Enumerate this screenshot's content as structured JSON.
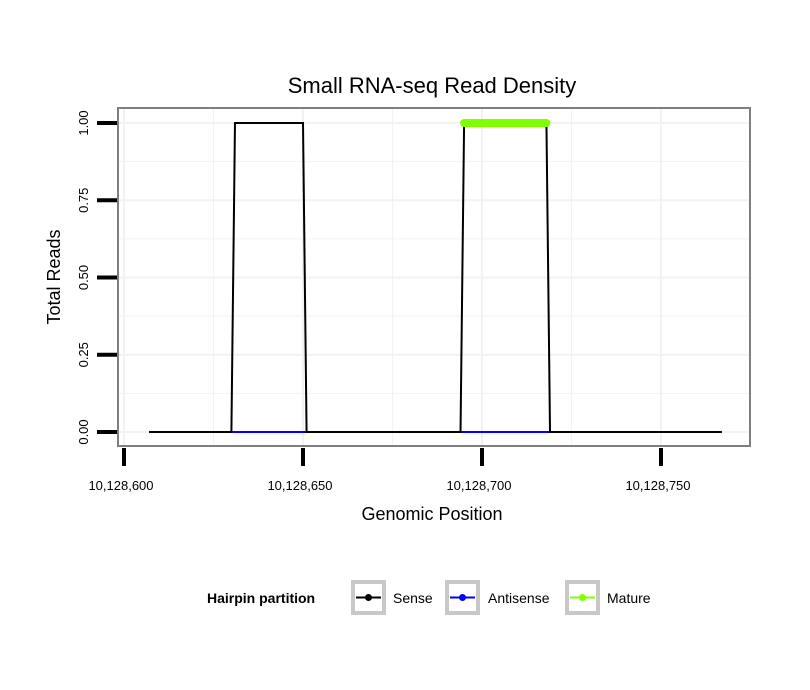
{
  "chart_data": {
    "type": "line",
    "title": "Small RNA-seq Read Density",
    "xlabel": "Genomic Position",
    "ylabel": "Total Reads",
    "xlim": [
      10128600,
      10128775
    ],
    "ylim": [
      0,
      1.04
    ],
    "x_ticks": [
      10128600,
      10128650,
      10128700,
      10128750
    ],
    "x_tick_labels": [
      "10,128,600",
      "10,128,650",
      "10,128,700",
      "10,128,750"
    ],
    "y_ticks": [
      0,
      0.25,
      0.5,
      0.75,
      1.0
    ],
    "y_tick_labels": [
      "0.00",
      "0.25",
      "0.50",
      "0.75",
      "1.00"
    ],
    "grid": true,
    "legend": {
      "title": "Hairpin partition",
      "position": "bottom",
      "entries": [
        "Sense",
        "Antisense",
        "Mature"
      ]
    },
    "series": [
      {
        "name": "Sense",
        "color": "#000000",
        "x": [
          10128607,
          10128630,
          10128631,
          10128650,
          10128651,
          10128694,
          10128695,
          10128718,
          10128719,
          10128767
        ],
        "y": [
          0,
          0,
          1,
          1,
          0,
          0,
          1,
          1,
          0,
          0
        ]
      },
      {
        "name": "Antisense",
        "color": "#0000ff",
        "x": [
          10128630,
          10128651,
          10128694,
          10128719
        ],
        "y": [
          0,
          0,
          0,
          0
        ],
        "segments": [
          [
            10128630,
            10128651
          ],
          [
            10128694,
            10128719
          ]
        ]
      },
      {
        "name": "Mature",
        "color": "#7fff00",
        "x": [
          10128695,
          10128718
        ],
        "y": [
          1,
          1
        ]
      }
    ]
  }
}
